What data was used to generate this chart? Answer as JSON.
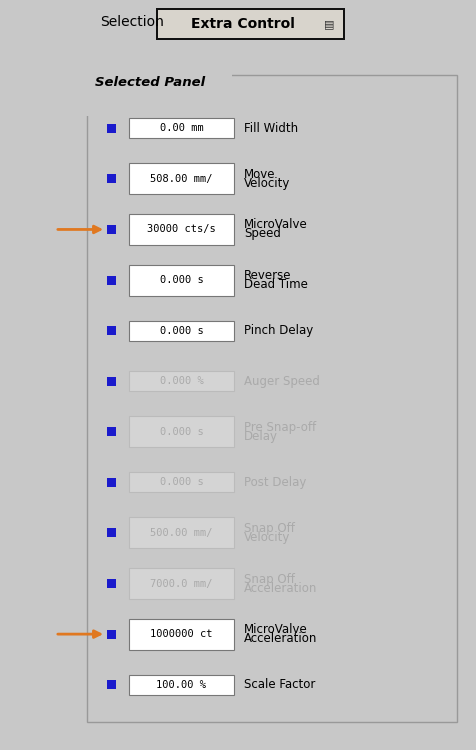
{
  "bg_color": "#c8c8c8",
  "panel_bg": "#c8c8c8",
  "title": "Selection",
  "dropdown_text": "Extra Control  ■",
  "group_label": "Selected Panel",
  "rows": [
    {
      "value": "0.00 mm",
      "enabled": true,
      "arrow": false,
      "label_lines": [
        "Fill Width"
      ]
    },
    {
      "value": "508.00 mm/",
      "enabled": true,
      "arrow": false,
      "label_lines": [
        "Move",
        "Velocity"
      ]
    },
    {
      "value": "30000 cts/s",
      "enabled": true,
      "arrow": true,
      "label_lines": [
        "MicroValve",
        "Speed"
      ]
    },
    {
      "value": "0.000 s",
      "enabled": true,
      "arrow": false,
      "label_lines": [
        "Reverse",
        "Dead Time"
      ]
    },
    {
      "value": "0.000 s",
      "enabled": true,
      "arrow": false,
      "label_lines": [
        "Pinch Delay"
      ]
    },
    {
      "value": "0.000 %",
      "enabled": false,
      "arrow": false,
      "label_lines": [
        "Auger Speed"
      ]
    },
    {
      "value": "0.000 s",
      "enabled": false,
      "arrow": false,
      "label_lines": [
        "Pre Snap-off",
        "Delay"
      ]
    },
    {
      "value": "0.000 s",
      "enabled": false,
      "arrow": false,
      "label_lines": [
        "Post Delay"
      ]
    },
    {
      "value": "500.00 mm/",
      "enabled": false,
      "arrow": false,
      "label_lines": [
        "Snap Off",
        "Velocity"
      ]
    },
    {
      "value": "7000.0 mm/",
      "enabled": false,
      "arrow": false,
      "label_lines": [
        "Snap Off",
        "Acceleration"
      ]
    },
    {
      "value": "1000000 ct",
      "enabled": true,
      "arrow": true,
      "label_lines": [
        "MicroValve",
        "Acceleration"
      ]
    },
    {
      "value": "100.00 %",
      "enabled": true,
      "arrow": false,
      "label_lines": [
        "Scale Factor"
      ]
    }
  ],
  "arrow_color": "#e07820",
  "box_border_color": "#888888",
  "blue_sq_color": "#1a1acc",
  "text_enabled_color": "#000000",
  "text_disabled_color": "#aaaaaa",
  "value_enabled_color": "#000000",
  "value_disabled_color": "#aaaaaa",
  "figw": 4.77,
  "figh": 7.5,
  "dpi": 100
}
